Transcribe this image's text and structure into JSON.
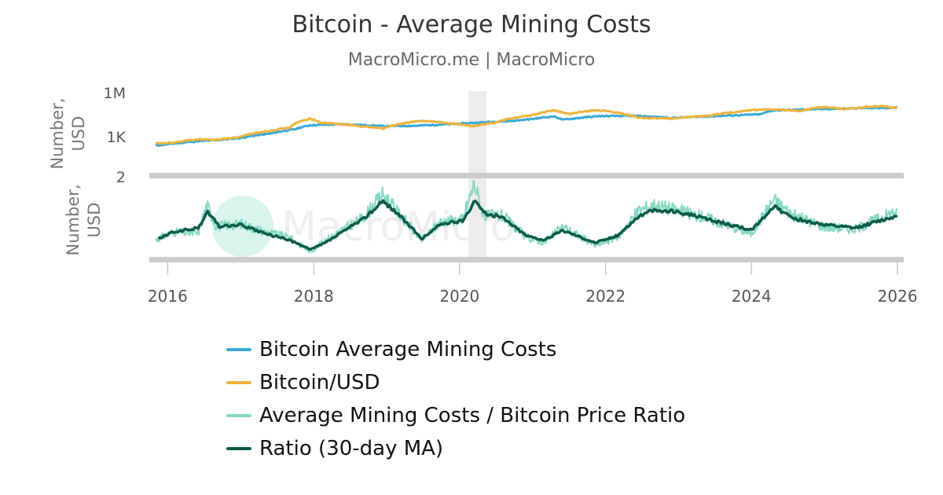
{
  "title": "Bitcoin - Average Mining Costs",
  "subtitle": "MacroMicro.me | MacroMicro",
  "watermark": "MacroMicro",
  "colors": {
    "mining_cost": "#3ba9d6",
    "btc_usd": "#f0b43c",
    "ratio": "#86d8c0",
    "ratio_ma": "#0d5c4a",
    "divider": "#cccccc",
    "shade": "#ececec",
    "axis_text": "#555555"
  },
  "chart_data": [
    {
      "type": "line",
      "yscale": "log",
      "ylabel": "Number, USD",
      "ytick_labels": [
        "1M",
        "1K",
        "2"
      ],
      "ytick_values": [
        1000000,
        1000,
        2
      ],
      "ylim": [
        2,
        1000000
      ],
      "shaded_period": [
        "2020-02-15",
        "2020-05-15"
      ],
      "series": [
        {
          "name": "Bitcoin Average Mining Costs",
          "color": "#3ba9d6",
          "points": [
            [
              "2015-11-01",
              240
            ],
            [
              "2016-02-01",
              330
            ],
            [
              "2016-06-01",
              480
            ],
            [
              "2016-09-01",
              560
            ],
            [
              "2017-01-01",
              800
            ],
            [
              "2017-06-01",
              1600
            ],
            [
              "2017-10-01",
              3200
            ],
            [
              "2017-12-15",
              6000
            ],
            [
              "2018-06-01",
              7000
            ],
            [
              "2018-12-15",
              5200
            ],
            [
              "2019-06-01",
              5500
            ],
            [
              "2019-12-01",
              7200
            ],
            [
              "2020-02-15",
              8200
            ],
            [
              "2020-05-01",
              9500
            ],
            [
              "2020-10-01",
              12000
            ],
            [
              "2020-12-31",
              16000
            ],
            [
              "2021-04-15",
              24000
            ],
            [
              "2021-06-01",
              14000
            ],
            [
              "2021-12-01",
              25000
            ],
            [
              "2022-06-01",
              26000
            ],
            [
              "2022-12-01",
              19000
            ],
            [
              "2023-06-01",
              24000
            ],
            [
              "2024-02-15",
              33000
            ],
            [
              "2024-04-20",
              62000
            ],
            [
              "2024-12-01",
              75000
            ],
            [
              "2025-06-01",
              85000
            ],
            [
              "2025-12-31",
              95000
            ]
          ]
        },
        {
          "name": "Bitcoin/USD",
          "color": "#f0b43c",
          "points": [
            [
              "2015-11-01",
              330
            ],
            [
              "2016-02-01",
              380
            ],
            [
              "2016-06-01",
              650
            ],
            [
              "2016-09-01",
              600
            ],
            [
              "2017-01-01",
              950
            ],
            [
              "2017-06-01",
              2600
            ],
            [
              "2017-09-01",
              4000
            ],
            [
              "2017-12-15",
              17000
            ],
            [
              "2018-02-01",
              9000
            ],
            [
              "2018-06-01",
              6500
            ],
            [
              "2018-12-15",
              3500
            ],
            [
              "2019-06-25",
              12000
            ],
            [
              "2019-12-15",
              7200
            ],
            [
              "2020-03-15",
              5000
            ],
            [
              "2020-07-01",
              9200
            ],
            [
              "2020-12-31",
              29000
            ],
            [
              "2021-04-15",
              62000
            ],
            [
              "2021-07-01",
              33000
            ],
            [
              "2021-11-10",
              65000
            ],
            [
              "2022-06-18",
              19000
            ],
            [
              "2022-12-01",
              17000
            ],
            [
              "2023-06-01",
              27000
            ],
            [
              "2024-03-14",
              72000
            ],
            [
              "2024-09-01",
              58000
            ],
            [
              "2024-12-17",
              106000
            ],
            [
              "2025-04-09",
              77000
            ],
            [
              "2025-10-06",
              124000
            ],
            [
              "2025-12-31",
              88000
            ]
          ]
        }
      ]
    },
    {
      "type": "line",
      "ylabel": "Number, USD",
      "shaded_period": [
        "2020-02-15",
        "2020-05-15"
      ],
      "series": [
        {
          "name": "Average Mining Costs / Bitcoin Price Ratio",
          "color": "#86d8c0",
          "points": [
            [
              "2015-11-01",
              0.6
            ],
            [
              "2016-02-01",
              0.75
            ],
            [
              "2016-06-01",
              0.72
            ],
            [
              "2016-07-15",
              1.25
            ],
            [
              "2016-09-01",
              0.85
            ],
            [
              "2017-01-01",
              0.9
            ],
            [
              "2017-05-01",
              0.75
            ],
            [
              "2017-09-01",
              0.65
            ],
            [
              "2017-12-15",
              0.38
            ],
            [
              "2018-03-01",
              0.6
            ],
            [
              "2018-09-01",
              1.0
            ],
            [
              "2018-12-15",
              1.45
            ],
            [
              "2019-03-01",
              1.1
            ],
            [
              "2019-06-25",
              0.6
            ],
            [
              "2019-10-01",
              0.95
            ],
            [
              "2020-01-15",
              0.98
            ],
            [
              "2020-03-15",
              1.65
            ],
            [
              "2020-05-01",
              1.05
            ],
            [
              "2020-08-01",
              1.05
            ],
            [
              "2020-12-01",
              0.65
            ],
            [
              "2021-03-01",
              0.55
            ],
            [
              "2021-06-01",
              0.85
            ],
            [
              "2021-11-10",
              0.5
            ],
            [
              "2022-03-01",
              0.65
            ],
            [
              "2022-06-18",
              1.15
            ],
            [
              "2022-09-01",
              1.25
            ],
            [
              "2023-01-01",
              1.15
            ],
            [
              "2023-06-01",
              1.0
            ],
            [
              "2024-01-01",
              0.72
            ],
            [
              "2024-04-20",
              1.35
            ],
            [
              "2024-08-01",
              1.05
            ],
            [
              "2025-01-01",
              0.85
            ],
            [
              "2025-06-01",
              0.8
            ],
            [
              "2025-12-31",
              1.15
            ]
          ]
        },
        {
          "name": "Ratio (30-day MA)",
          "color": "#0d5c4a",
          "points": [
            [
              "2015-11-15",
              0.62
            ],
            [
              "2016-02-01",
              0.75
            ],
            [
              "2016-06-01",
              0.82
            ],
            [
              "2016-07-20",
              1.12
            ],
            [
              "2016-09-15",
              0.85
            ],
            [
              "2017-01-01",
              0.88
            ],
            [
              "2017-05-01",
              0.72
            ],
            [
              "2017-09-01",
              0.6
            ],
            [
              "2017-12-15",
              0.42
            ],
            [
              "2018-03-01",
              0.55
            ],
            [
              "2018-09-01",
              0.98
            ],
            [
              "2018-12-15",
              1.32
            ],
            [
              "2019-03-01",
              1.08
            ],
            [
              "2019-06-25",
              0.62
            ],
            [
              "2019-10-01",
              0.9
            ],
            [
              "2020-01-15",
              0.95
            ],
            [
              "2020-03-20",
              1.35
            ],
            [
              "2020-05-01",
              1.1
            ],
            [
              "2020-08-01",
              1.02
            ],
            [
              "2020-12-01",
              0.68
            ],
            [
              "2021-03-01",
              0.6
            ],
            [
              "2021-06-01",
              0.78
            ],
            [
              "2021-11-10",
              0.55
            ],
            [
              "2022-03-01",
              0.68
            ],
            [
              "2022-06-18",
              1.05
            ],
            [
              "2022-09-01",
              1.15
            ],
            [
              "2023-01-01",
              1.12
            ],
            [
              "2023-06-01",
              0.98
            ],
            [
              "2024-01-01",
              0.78
            ],
            [
              "2024-04-20",
              1.22
            ],
            [
              "2024-08-01",
              1.0
            ],
            [
              "2025-01-01",
              0.88
            ],
            [
              "2025-06-01",
              0.82
            ],
            [
              "2025-12-31",
              1.05
            ]
          ]
        }
      ]
    }
  ],
  "x_axis": {
    "ticks": [
      {
        "date": "2016-01-01",
        "label": "2016"
      },
      {
        "date": "2018-01-01",
        "label": "2018"
      },
      {
        "date": "2020-01-01",
        "label": "2020"
      },
      {
        "date": "2022-01-01",
        "label": "2022"
      },
      {
        "date": "2024-01-01",
        "label": "2024"
      },
      {
        "date": "2026-01-01",
        "label": "2026"
      }
    ],
    "range": [
      "2015-10-01",
      "2026-02-01"
    ]
  },
  "legend": [
    {
      "label": "Bitcoin Average Mining Costs",
      "color": "#3ba9d6"
    },
    {
      "label": "Bitcoin/USD",
      "color": "#f0b43c"
    },
    {
      "label": "Average Mining Costs / Bitcoin Price Ratio",
      "color": "#86d8c0"
    },
    {
      "label": "Ratio (30-day MA)",
      "color": "#0d5c4a"
    }
  ]
}
